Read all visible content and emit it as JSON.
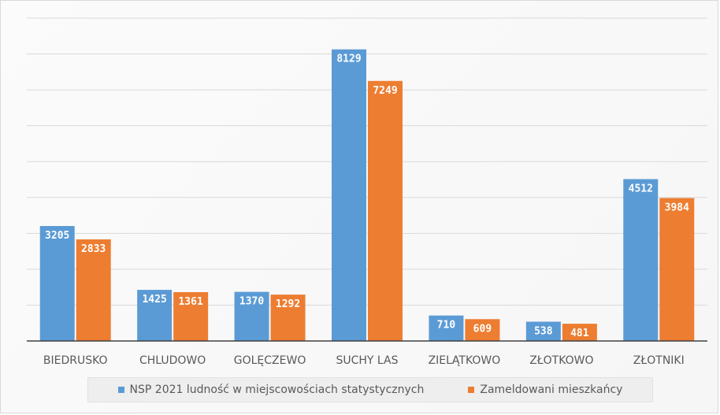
{
  "chart_data": {
    "type": "bar",
    "title": "",
    "xlabel": "",
    "ylabel": "",
    "ylim": [
      0,
      9000
    ],
    "gridlines": [
      1000,
      2000,
      3000,
      4000,
      5000,
      6000,
      7000,
      8000,
      9000
    ],
    "grid": true,
    "legend_position": "bottom",
    "categories": [
      "BIEDRUSKO",
      "CHLUDOWO",
      "GOLĘCZEWO",
      "SUCHY LAS",
      "ZIELĄTKOWO",
      "ZŁOTKOWO",
      "ZŁOTNIKI"
    ],
    "series": [
      {
        "name": "NSP 2021 ludność w miejscowościach statystycznych",
        "color": "#5b9bd5",
        "values": [
          3205,
          1425,
          1370,
          8129,
          710,
          538,
          4512
        ]
      },
      {
        "name": "Zameldowani mieszkańcy",
        "color": "#ed7d31",
        "values": [
          2833,
          1361,
          1292,
          7249,
          609,
          481,
          3984
        ]
      }
    ]
  }
}
